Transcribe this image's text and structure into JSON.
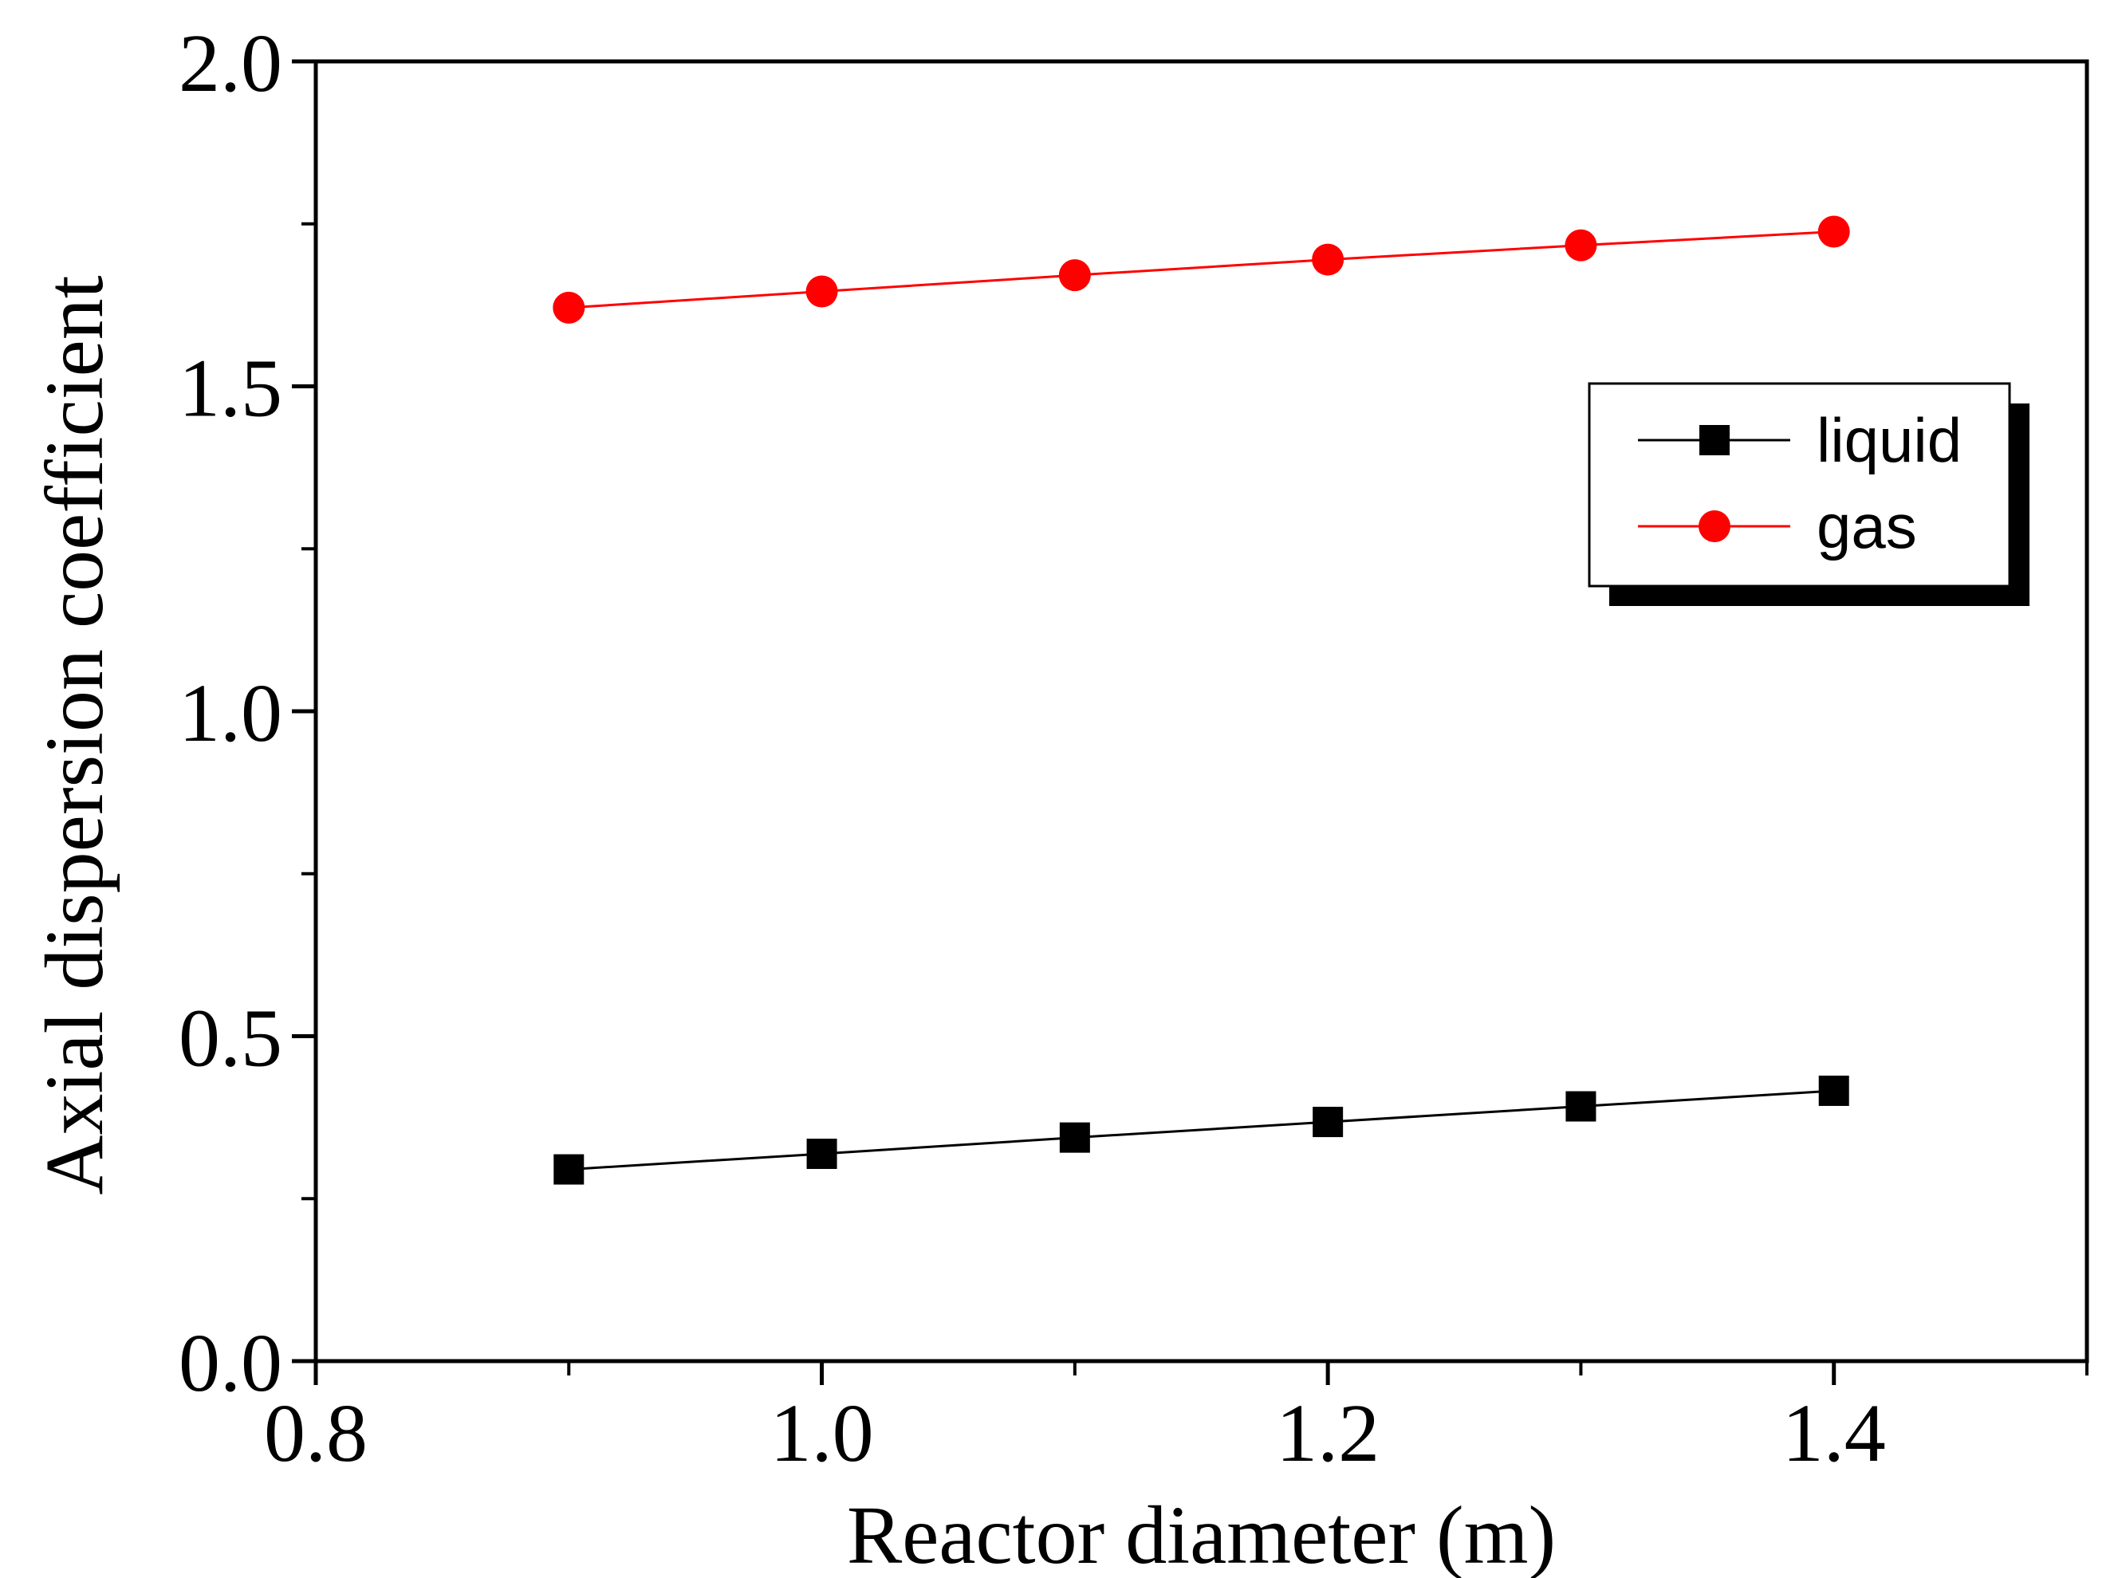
{
  "chart_data": {
    "type": "line",
    "title": "",
    "xlabel": "Reactor diameter (m)",
    "ylabel": "Axial dispersion coefficient",
    "xlim": [
      0.8,
      1.5
    ],
    "ylim": [
      0.0,
      2.0
    ],
    "x_ticks": [
      0.8,
      1.0,
      1.2,
      1.4
    ],
    "x_tick_labels": [
      "0.8",
      "1.0",
      "1.2",
      "1.4"
    ],
    "x_minor_ticks": [
      0.9,
      1.1,
      1.3,
      1.5
    ],
    "y_ticks": [
      0.0,
      0.5,
      1.0,
      1.5,
      2.0
    ],
    "y_tick_labels": [
      "0.0",
      "0.5",
      "1.0",
      "1.5",
      "2.0"
    ],
    "y_minor_ticks": [
      0.25,
      0.75,
      1.25,
      1.75
    ],
    "grid": false,
    "legend_position": "top-right",
    "series": [
      {
        "name": "liquid",
        "color": "#000000",
        "marker": "square",
        "x": [
          0.9,
          1.0,
          1.1,
          1.2,
          1.3,
          1.4
        ],
        "values": [
          0.295,
          0.319,
          0.344,
          0.368,
          0.392,
          0.416
        ]
      },
      {
        "name": "gas",
        "color": "#ff0000",
        "marker": "circle",
        "x": [
          0.9,
          1.0,
          1.1,
          1.2,
          1.3,
          1.4
        ],
        "values": [
          1.621,
          1.646,
          1.671,
          1.695,
          1.717,
          1.738
        ]
      }
    ]
  }
}
